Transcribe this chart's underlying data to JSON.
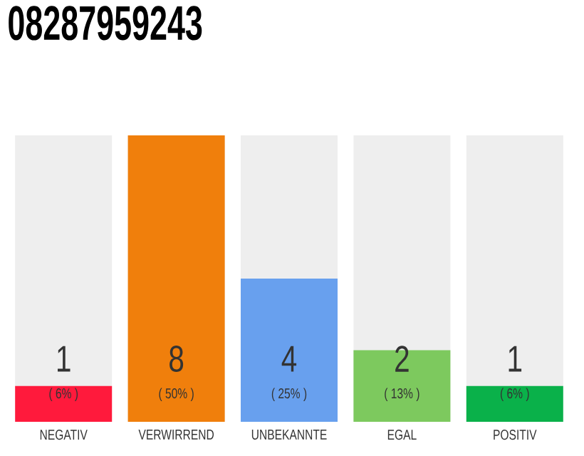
{
  "chart_data": {
    "type": "bar",
    "title": "08287959243",
    "categories": [
      "NEGATIV",
      "VERWIRREND",
      "UNBEKANNTE",
      "EGAL",
      "POSITIV"
    ],
    "values": [
      1,
      8,
      4,
      2,
      1
    ],
    "colors": [
      "#ff1a3c",
      "#f07f0c",
      "#68a0ee",
      "#7dc95e",
      "#0ab14a"
    ],
    "value_labels": [
      "1",
      "8",
      "4",
      "2",
      "1"
    ],
    "annotations": [
      "( 6% )",
      "( 50% )",
      "( 25% )",
      "( 13% )",
      "( 6% )"
    ],
    "tick_labels": "x"
  }
}
